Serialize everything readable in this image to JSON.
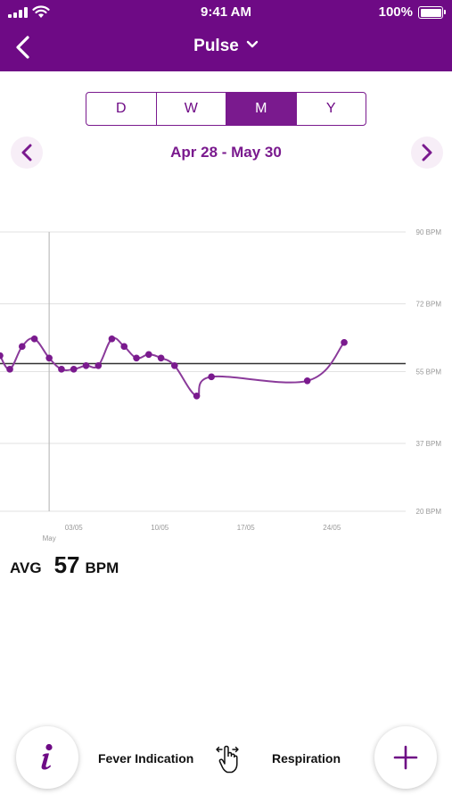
{
  "status_bar": {
    "time": "9:41 AM",
    "battery_percent": "100%",
    "battery_level": 1.0,
    "icons": [
      "signal-bars-icon",
      "wifi-icon",
      "battery-icon"
    ]
  },
  "header": {
    "title": "Pulse",
    "back_icon": "chevron-left-icon",
    "dropdown_icon": "chevron-down-icon",
    "background_color": "#6e0a85"
  },
  "period_tabs": [
    {
      "label": "D",
      "active": false
    },
    {
      "label": "W",
      "active": false
    },
    {
      "label": "M",
      "active": true
    },
    {
      "label": "Y",
      "active": false
    }
  ],
  "date_range": {
    "label": "Apr 28 - May 30",
    "prev_icon": "chevron-left-icon",
    "next_icon": "chevron-right-icon"
  },
  "chart_data": {
    "type": "line",
    "x_ticks": [
      "03/05",
      "10/05",
      "17/05",
      "24/05"
    ],
    "x_sublabel": "May",
    "y_ticks": [
      "90 BPM",
      "72 BPM",
      "55 BPM",
      "37 BPM",
      "20 BPM"
    ],
    "y_values": [
      90,
      72,
      55,
      37,
      20
    ],
    "ylim": [
      20,
      90
    ],
    "xlim": [
      -3,
      30
    ],
    "month_marker_day": 1,
    "average_line": 57,
    "grid": true,
    "series": [
      {
        "x": [
          -3.0,
          -2.2,
          -1.2,
          -0.2,
          1.0,
          2.0,
          3.0,
          4.0,
          5.0,
          6.1,
          7.1,
          8.1,
          9.1,
          10.1,
          11.2,
          13.0,
          14.2,
          22.0,
          25.0
        ],
        "y": [
          59,
          55.6,
          61.3,
          63.2,
          58.4,
          55.6,
          55.6,
          56.5,
          56.5,
          63.2,
          61.3,
          58.4,
          59.3,
          58.4,
          56.5,
          48.9,
          53.7,
          52.7,
          62.3
        ]
      }
    ],
    "line_color": "#8a3a9a",
    "avg_line_color": "#333333"
  },
  "summary": {
    "avg_label": "AVG",
    "avg_value": "57",
    "avg_unit": "BPM"
  },
  "bottom_bar": {
    "info_icon": "info-icon",
    "fever_label": "Fever Indication",
    "swipe_icon": "swipe-hand-icon",
    "respiration_label": "Respiration",
    "add_icon": "plus-icon"
  }
}
